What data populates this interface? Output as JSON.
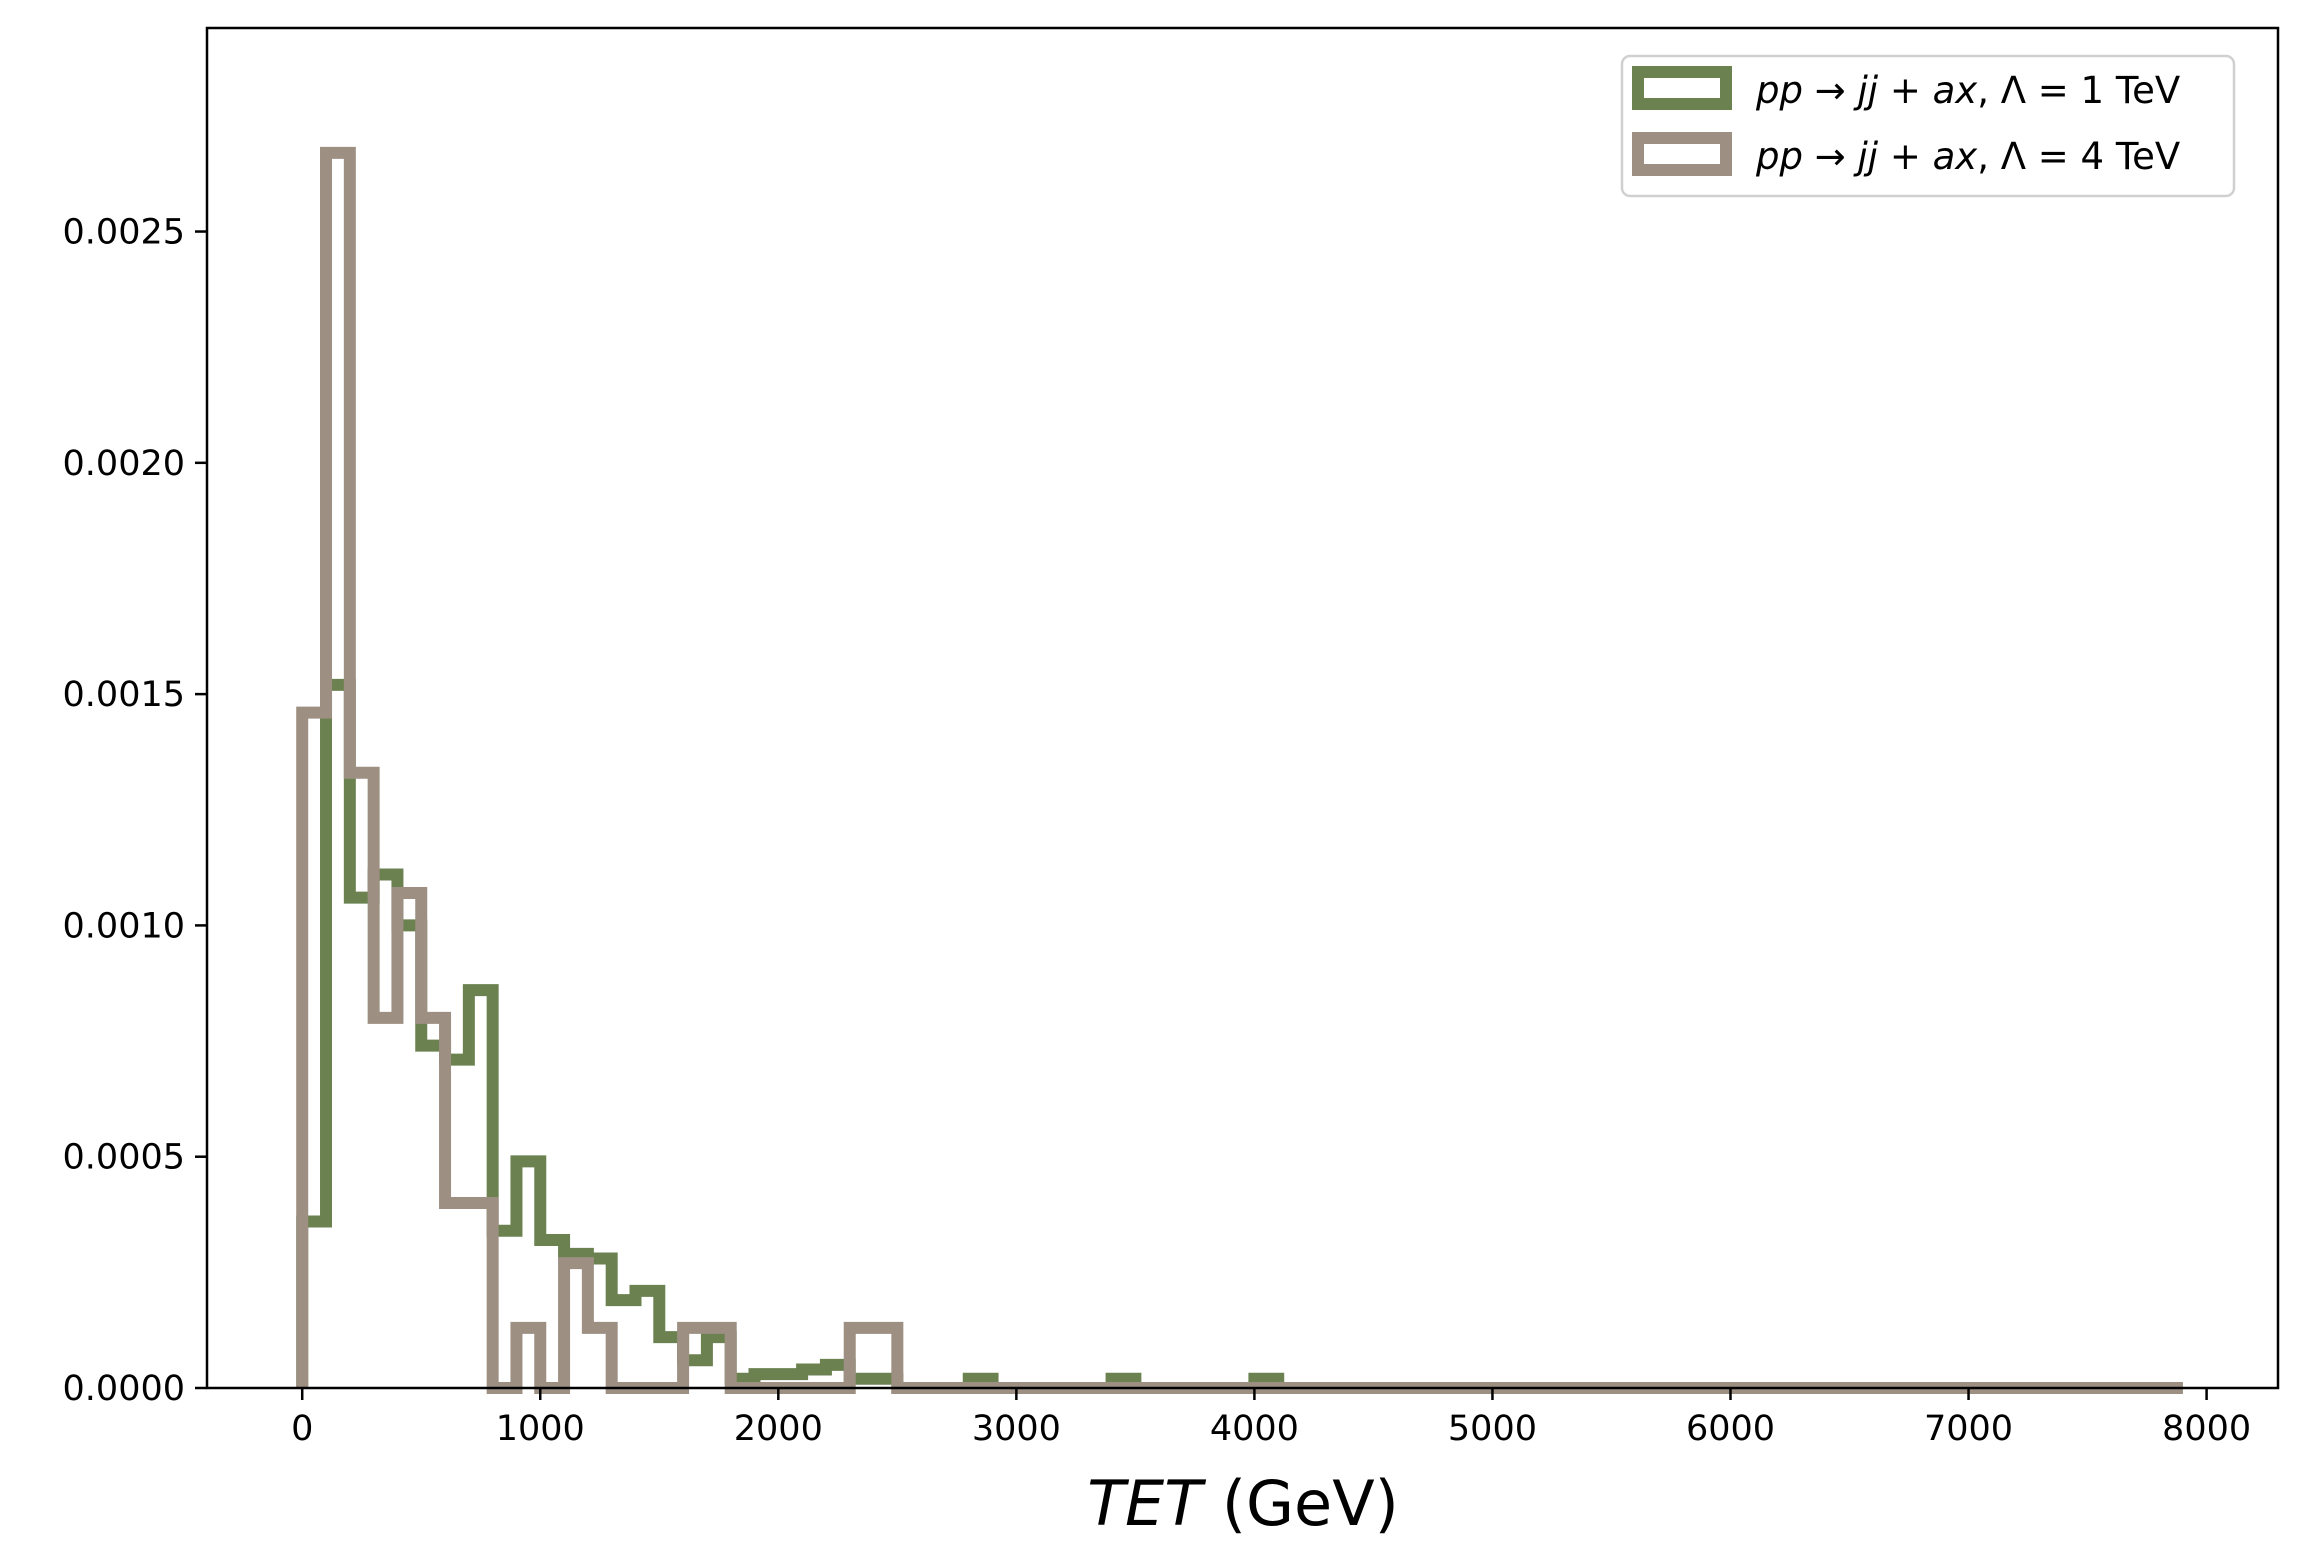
{
  "chart_data": {
    "type": "histogram",
    "title": "",
    "xlabel_italic": "TET",
    "xlabel_rest": " (GeV)",
    "ylabel": "",
    "xlim": [
      -400,
      8300
    ],
    "ylim": [
      0,
      0.00294
    ],
    "grid": false,
    "legend_position": "top-right",
    "x_ticks": [
      0,
      1000,
      2000,
      3000,
      4000,
      5000,
      6000,
      7000,
      8000
    ],
    "x_tick_labels": [
      "0",
      "1000",
      "2000",
      "3000",
      "4000",
      "5000",
      "6000",
      "7000",
      "8000"
    ],
    "y_ticks": [
      0,
      0.0005,
      0.001,
      0.0015,
      0.002,
      0.0025
    ],
    "y_tick_labels": [
      "0.0000",
      "0.0005",
      "0.0010",
      "0.0015",
      "0.0020",
      "0.0025"
    ],
    "bin_edges": [
      0,
      100,
      200,
      300,
      400,
      500,
      600,
      700,
      800,
      900,
      1000,
      1100,
      1200,
      1300,
      1400,
      1500,
      1600,
      1700,
      1800,
      1900,
      2000,
      2100,
      2200,
      2300,
      2400,
      2500,
      2600,
      2700,
      2800,
      2900,
      3000,
      3100,
      3200,
      3300,
      3400,
      3500,
      3600,
      3700,
      3800,
      3900,
      4000,
      4100,
      4200,
      4300,
      4400,
      4500,
      4600,
      4700,
      4800,
      4900,
      5000,
      5100,
      5200,
      5300,
      5400,
      5500,
      5600,
      5700,
      5800,
      5900,
      6000,
      6100,
      6200,
      6300,
      6400,
      6500,
      6600,
      6700,
      6800,
      6900,
      7000,
      7100,
      7200,
      7300,
      7400,
      7500,
      7600,
      7700,
      7800,
      7900
    ],
    "series": [
      {
        "name": "pp → jj + ax, Λ = 1 TeV",
        "color": "#6b8150",
        "values": [
          0.00036,
          0.00152,
          0.00106,
          0.00111,
          0.001,
          0.00074,
          0.00071,
          0.00086,
          0.00034,
          0.00049,
          0.00032,
          0.00029,
          0.00028,
          0.00019,
          0.00021,
          0.00011,
          6e-05,
          0.00011,
          2e-05,
          3e-05,
          3e-05,
          4e-05,
          5e-05,
          2e-05,
          2e-05,
          0,
          0,
          0,
          2e-05,
          0,
          0,
          0,
          0,
          0,
          2e-05,
          0,
          0,
          0,
          0,
          0,
          2e-05,
          0,
          0,
          0,
          0,
          0,
          0,
          0,
          0,
          0,
          0,
          0,
          0,
          0,
          0,
          0,
          0,
          0,
          0,
          0,
          0,
          0,
          0,
          0,
          0,
          0,
          0,
          0,
          0,
          0,
          0,
          0,
          0,
          0,
          0,
          0,
          0,
          0,
          0
        ]
      },
      {
        "name": "pp → jj + ax, Λ = 4 TeV",
        "color": "#9d8f82",
        "values": [
          0.00146,
          0.00267,
          0.00133,
          0.0008,
          0.00107,
          0.0008,
          0.0004,
          0.0004,
          0,
          0.00013,
          0,
          0.00027,
          0.00013,
          0,
          0,
          0,
          0.00013,
          0.00013,
          0,
          0,
          0,
          0,
          0,
          0.00013,
          0.00013,
          0,
          0,
          0,
          0,
          0,
          0,
          0,
          0,
          0,
          0,
          0,
          0,
          0,
          0,
          0,
          0,
          0,
          0,
          0,
          0,
          0,
          0,
          0,
          0,
          0,
          0,
          0,
          0,
          0,
          0,
          0,
          0,
          0,
          0,
          0,
          0,
          0,
          0,
          0,
          0,
          0,
          0,
          0,
          0,
          0,
          0,
          0,
          0,
          0,
          0,
          0,
          0,
          0,
          0
        ]
      }
    ],
    "legend": [
      {
        "pre": "pp",
        "arrow": " → ",
        "mid": "jj",
        "plus": " + ",
        "post": "ax",
        "rest": ", Λ = 1 TeV"
      },
      {
        "pre": "pp",
        "arrow": " → ",
        "mid": "jj",
        "plus": " + ",
        "post": "ax",
        "rest": ", Λ = 4 TeV"
      }
    ]
  }
}
